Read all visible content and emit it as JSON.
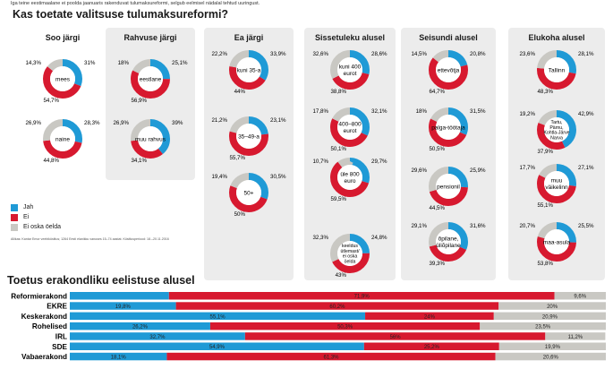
{
  "intro": "Iga teine eestimaalane ei poolda jaanuaris rakenduvat tulumaksureformi, selgub eelmisel nädalal tehtud  uuringust.",
  "question": "Kas toetate valitsuse tulumaksureformi?",
  "colors": {
    "jah": "#1f9ad6",
    "ei": "#d7192f",
    "eos": "#c9c8c3"
  },
  "legend": {
    "jah": "Jah",
    "ei": "Ei",
    "eos": "Ei oska öelda"
  },
  "source": "Allikas: Kantar Emor veebiküsitlus; 1264 Eesti elanikku vanuses 15–74 aastat. Küsitlusperiood: 18.–20.11.2016",
  "chart_data": [
    {
      "type": "pie",
      "title": "Kas toetate valitsuse tulumaksureformi?",
      "series_labels": [
        "Jah",
        "Ei",
        "Ei oska öelda"
      ],
      "groups": [
        {
          "title": "Soo järgi",
          "items": [
            {
              "label": "mees",
              "values": [
                31,
                54.7,
                14.3
              ]
            },
            {
              "label": "naine",
              "values": [
                28.3,
                44.8,
                26.9
              ]
            }
          ]
        },
        {
          "title": "Rahvuse järgi",
          "items": [
            {
              "label": "eestlane",
              "values": [
                25.1,
                56.9,
                18
              ]
            },
            {
              "label": "muu rahvus",
              "values": [
                39,
                34.1,
                26.9
              ]
            }
          ]
        },
        {
          "title": "Ea järgi",
          "items": [
            {
              "label": "kuni 35-a",
              "values": [
                33.9,
                44,
                22.2
              ]
            },
            {
              "label": "35–49-a",
              "values": [
                23.1,
                55.7,
                21.2
              ]
            },
            {
              "label": "50+",
              "values": [
                30.5,
                50,
                19.4
              ]
            }
          ]
        },
        {
          "title": "Sissetuleku alusel",
          "items": [
            {
              "label": "kuni 400 eurot",
              "values": [
                28.6,
                38.8,
                32.6
              ]
            },
            {
              "label": "400–800 eurot",
              "values": [
                32.1,
                50.1,
                17.8
              ]
            },
            {
              "label": "üle 800 euro",
              "values": [
                29.7,
                59.5,
                10.7
              ]
            },
            {
              "label": "keeldus ütlemast/ ei oska öelda",
              "values": [
                24.8,
                43,
                32.3
              ]
            }
          ]
        },
        {
          "title": "Seisundi alusel",
          "items": [
            {
              "label": "ettevõtja",
              "values": [
                20.8,
                64.7,
                14.5
              ]
            },
            {
              "label": "palga-töötaja",
              "values": [
                31.5,
                50.5,
                18
              ]
            },
            {
              "label": "pensionil",
              "values": [
                25.9,
                44.5,
                29.6
              ]
            },
            {
              "label": "õpilane, üliõpilane",
              "values": [
                31.6,
                39.3,
                29.1
              ]
            }
          ]
        },
        {
          "title": "Elukoha alusel",
          "items": [
            {
              "label": "Tallinn",
              "values": [
                28.1,
                48.3,
                23.6
              ]
            },
            {
              "label": "Tartu, Pärnu, Kohtla-Järve Narva",
              "values": [
                42.9,
                37.9,
                19.2
              ]
            },
            {
              "label": "muu väikelinn",
              "values": [
                27.1,
                55.1,
                17.7
              ]
            },
            {
              "label": "maa-asula",
              "values": [
                25.5,
                53.8,
                20.7
              ]
            }
          ]
        }
      ]
    },
    {
      "type": "bar",
      "title": "Toetus erakondliku eelistuse alusel",
      "series": [
        {
          "name": "Jah",
          "values": [
            18.5,
            19.8,
            55.1,
            26.2,
            32.7,
            54.9,
            18.1
          ]
        },
        {
          "name": "Ei",
          "values": [
            71.9,
            60.2,
            24,
            50.3,
            56,
            25.2,
            61.3
          ]
        },
        {
          "name": "Ei oska öelda",
          "values": [
            9.6,
            20,
            20.9,
            23.5,
            11.2,
            19.9,
            20.6
          ]
        }
      ],
      "categories": [
        "Reformierakond",
        "EKRE",
        "Keskerakond",
        "Rohelised",
        "IRL",
        "SDE",
        "Vabaerakond"
      ],
      "labels": [
        [
          "",
          "71,9%",
          "9,6%"
        ],
        [
          "19,8%",
          "60,2%",
          "20%"
        ],
        [
          "55,1%",
          "24%",
          "20,9%"
        ],
        [
          "26,2%",
          "50,3%",
          "23,5%"
        ],
        [
          "32,7%",
          "56%",
          "11,2%"
        ],
        [
          "54,9%",
          "25,2%",
          "19,9%"
        ],
        [
          "18,1%",
          "61,3%",
          "20,6%"
        ]
      ]
    }
  ]
}
